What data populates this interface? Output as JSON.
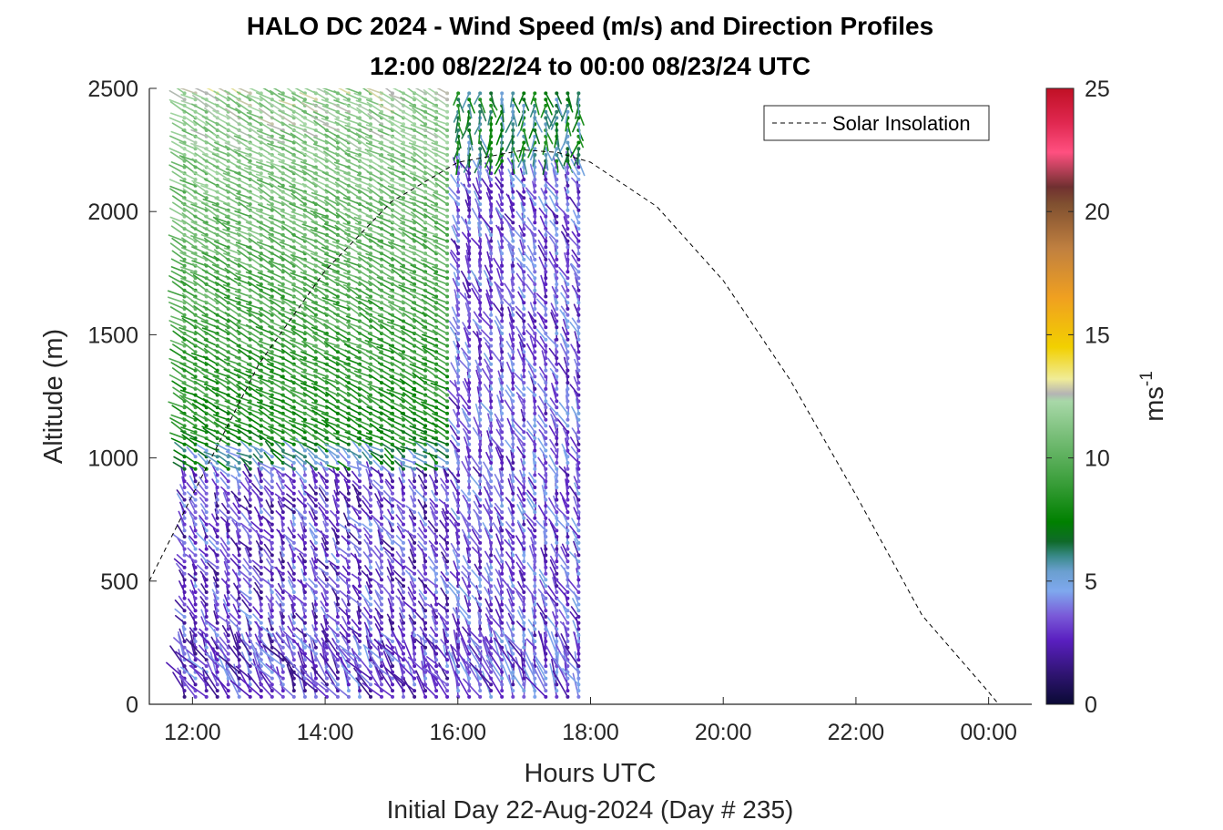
{
  "chart_data": {
    "type": "wind-barb-profile",
    "title": "HALO DC 2024 - Wind Speed (m/s) and Direction Profiles",
    "subtitle": "12:00 08/22/24 to 00:00 08/23/24  UTC",
    "xlabel": "Hours UTC",
    "ylabel": "Altitude (m)",
    "footnote": "Initial Day 22-Aug-2024 (Day # 235)",
    "xlim_hours": [
      11.35,
      24.65
    ],
    "ylim": [
      0,
      2500
    ],
    "x_ticks": [
      {
        "hour": 12,
        "label": "12:00"
      },
      {
        "hour": 14,
        "label": "14:00"
      },
      {
        "hour": 16,
        "label": "16:00"
      },
      {
        "hour": 18,
        "label": "18:00"
      },
      {
        "hour": 20,
        "label": "20:00"
      },
      {
        "hour": 22,
        "label": "22:00"
      },
      {
        "hour": 24,
        "label": "00:00"
      }
    ],
    "y_ticks": [
      {
        "value": 0,
        "label": "0"
      },
      {
        "value": 500,
        "label": "500"
      },
      {
        "value": 1000,
        "label": "1000"
      },
      {
        "value": 1500,
        "label": "1500"
      },
      {
        "value": 2000,
        "label": "2000"
      },
      {
        "value": 2500,
        "label": "2500"
      }
    ],
    "colorbar": {
      "label": "ms",
      "label_superscript": "-1",
      "range": [
        0,
        25
      ],
      "ticks": [
        {
          "value": 0,
          "label": "0"
        },
        {
          "value": 5,
          "label": "5"
        },
        {
          "value": 10,
          "label": "10"
        },
        {
          "value": 15,
          "label": "15"
        },
        {
          "value": 20,
          "label": "20"
        },
        {
          "value": 25,
          "label": "25"
        }
      ],
      "stops": [
        {
          "v": 0.0,
          "c": "#0a0a35"
        },
        {
          "v": 1.2,
          "c": "#2e1470"
        },
        {
          "v": 2.6,
          "c": "#5a1fc0"
        },
        {
          "v": 3.6,
          "c": "#7a5ad8"
        },
        {
          "v": 4.6,
          "c": "#7fa8ee"
        },
        {
          "v": 5.4,
          "c": "#6a9fcf"
        },
        {
          "v": 6.0,
          "c": "#3a8a8a"
        },
        {
          "v": 6.6,
          "c": "#0f6a2a"
        },
        {
          "v": 7.4,
          "c": "#008000"
        },
        {
          "v": 9.0,
          "c": "#3a9e3a"
        },
        {
          "v": 11.0,
          "c": "#7cc07c"
        },
        {
          "v": 12.3,
          "c": "#a8d8a8"
        },
        {
          "v": 12.6,
          "c": "#b4b4b4"
        },
        {
          "v": 13.2,
          "c": "#f0ec98"
        },
        {
          "v": 14.5,
          "c": "#f2d000"
        },
        {
          "v": 16.5,
          "c": "#f0a020"
        },
        {
          "v": 18.5,
          "c": "#c08040"
        },
        {
          "v": 20.3,
          "c": "#805030"
        },
        {
          "v": 21.0,
          "c": "#703030"
        },
        {
          "v": 22.4,
          "c": "#ff5080"
        },
        {
          "v": 23.6,
          "c": "#e02850"
        },
        {
          "v": 25.0,
          "c": "#c01025"
        }
      ]
    },
    "legend": {
      "location": "top-right",
      "entries": [
        {
          "name": "Solar Insolation",
          "style": "black dashed"
        }
      ]
    },
    "series": [
      {
        "name": "Solar Insolation",
        "type": "line",
        "x_hours": [
          11.35,
          12.0,
          13.0,
          14.0,
          15.0,
          16.0,
          17.0,
          17.5,
          18.0,
          19.0,
          20.0,
          21.0,
          22.0,
          23.0,
          24.0,
          24.15,
          24.65
        ],
        "y": [
          500,
          850,
          1380,
          1760,
          2040,
          2200,
          2250,
          2240,
          2200,
          2020,
          1720,
          1320,
          850,
          360,
          50,
          0,
          0
        ]
      }
    ],
    "wind_profiles": {
      "description": "Wind barbs (arrows) at profile times from ~11:55 to ~17:50 UTC, every ~10 min, vertical spacing ~25 m from ~30 m to ~2500 m; colour = speed (m/s); arrow points toward direction the wind blows to.",
      "time_start_hours": 11.88,
      "time_end_hours": 17.82,
      "n_profiles": 37,
      "alt_min_m": 30,
      "alt_max_m": 2490,
      "alt_step_m": 25,
      "regimes": [
        {
          "hours": [
            11.88,
            15.9
          ],
          "alt_m": [
            1000,
            2500
          ],
          "speed_ms": [
            8,
            12
          ],
          "blowing_to_deg": 120
        },
        {
          "hours": [
            11.88,
            15.9
          ],
          "alt_m": [
            0,
            1000
          ],
          "speed_ms": [
            1,
            5
          ],
          "blowing_to_deg": 150
        },
        {
          "hours": [
            15.9,
            17.82
          ],
          "alt_m": [
            0,
            2200
          ],
          "speed_ms": [
            2,
            5
          ],
          "blowing_to_deg": 160
        },
        {
          "hours": [
            15.9,
            17.82
          ],
          "alt_m": [
            2200,
            2500
          ],
          "speed_ms": [
            5,
            8
          ],
          "blowing_to_deg": 0
        }
      ]
    }
  }
}
